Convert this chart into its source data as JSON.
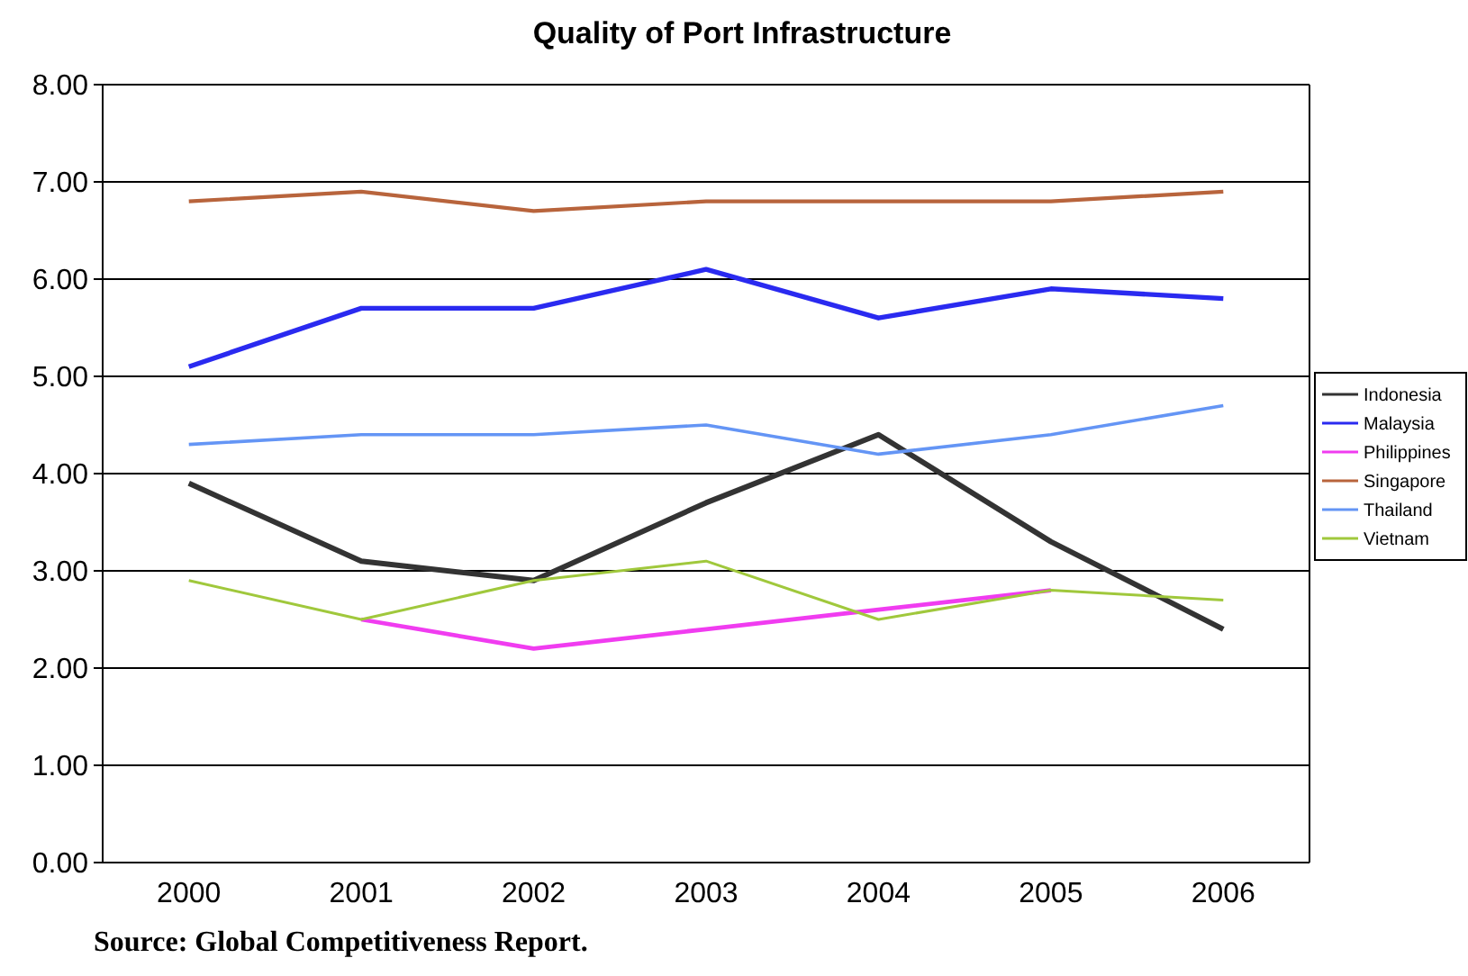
{
  "chart_data": {
    "type": "line",
    "title": "Quality of Port Infrastructure",
    "categories": [
      "2000",
      "2001",
      "2002",
      "2003",
      "2004",
      "2005",
      "2006"
    ],
    "series": [
      {
        "name": "Indonesia",
        "color": "#333333",
        "values": [
          3.9,
          3.1,
          2.9,
          3.7,
          4.4,
          3.3,
          2.4
        ]
      },
      {
        "name": "Malaysia",
        "color": "#2a2af0",
        "values": [
          5.1,
          5.7,
          5.7,
          6.1,
          5.6,
          5.9,
          5.8
        ]
      },
      {
        "name": "Philippines",
        "color": "#f03cf0",
        "values": [
          null,
          2.5,
          2.2,
          2.4,
          2.6,
          2.8,
          null
        ]
      },
      {
        "name": "Singapore",
        "color": "#b8643c",
        "values": [
          6.8,
          6.9,
          6.7,
          6.8,
          6.8,
          6.8,
          6.9
        ]
      },
      {
        "name": "Thailand",
        "color": "#6495f5",
        "values": [
          4.3,
          4.4,
          4.4,
          4.5,
          4.2,
          4.4,
          4.7
        ]
      },
      {
        "name": "Vietnam",
        "color": "#a0c83c",
        "values": [
          2.9,
          2.5,
          2.9,
          3.1,
          2.5,
          2.8,
          2.7
        ]
      }
    ],
    "ylim": [
      0,
      8
    ],
    "yticks": [
      {
        "value": 0,
        "label": "0.00"
      },
      {
        "value": 1,
        "label": "1.00"
      },
      {
        "value": 2,
        "label": "2.00"
      },
      {
        "value": 3,
        "label": "3.00"
      },
      {
        "value": 4,
        "label": "4.00"
      },
      {
        "value": 5,
        "label": "5.00"
      },
      {
        "value": 6,
        "label": "6.00"
      },
      {
        "value": 7,
        "label": "7.00"
      },
      {
        "value": 8,
        "label": "8.00"
      }
    ],
    "grid": "y",
    "legend": "right",
    "marker": "none",
    "line_style": "solid",
    "annotations": [
      "Source: Global Competitiveness Report."
    ]
  }
}
